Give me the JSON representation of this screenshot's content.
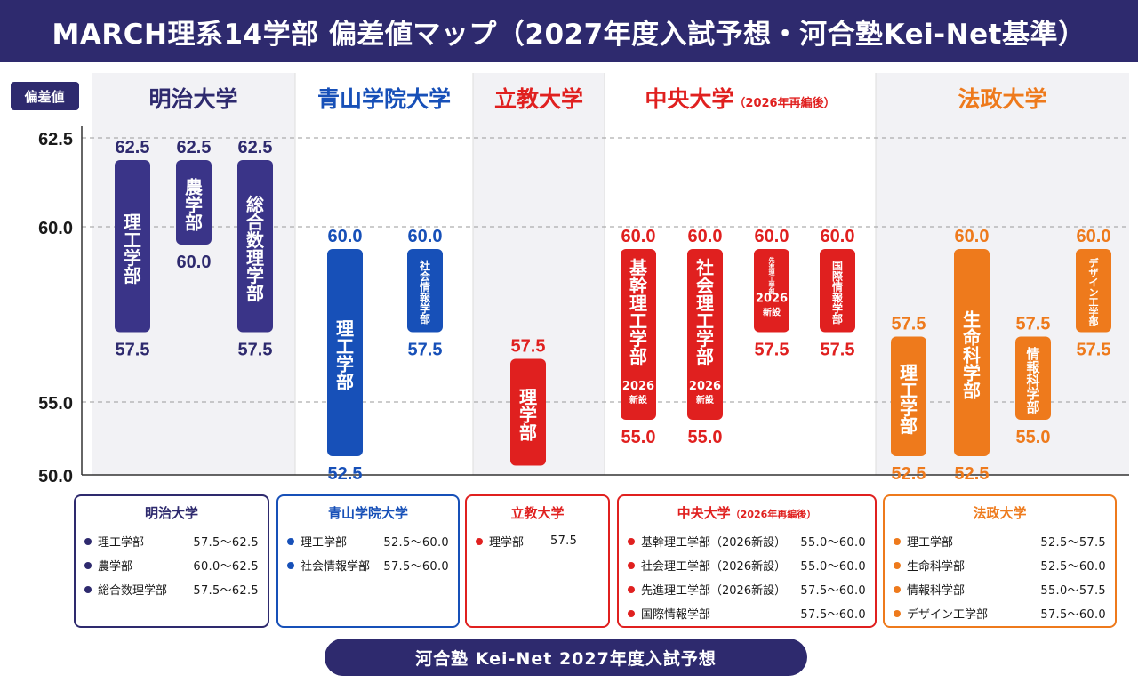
{
  "title": "MARCH理系14学部 偏差値マップ（2027年度入試予想・河合塾Kei-Net基準）",
  "chart_data": {
    "type": "bar",
    "subtype": "floating-range",
    "y_label": "偏差値",
    "y_ticks": [
      "62.5",
      "60.0",
      "55.0",
      "50.0"
    ],
    "y_tick_values": [
      62.5,
      60.0,
      55.0,
      50.0
    ],
    "ylim": [
      50.0,
      62.5
    ],
    "grid": true,
    "groups": [
      {
        "name": "明治大学",
        "note": "",
        "color": "#3a3488",
        "depts": [
          {
            "label": "理工学部",
            "low": 57.5,
            "high": 62.5,
            "low_label": "57.5",
            "high_label": "62.5"
          },
          {
            "label": "農学部",
            "low": 60.0,
            "high": 62.5,
            "low_label": "60.0",
            "high_label": "62.5"
          },
          {
            "label": "総合数理学部",
            "low": 57.5,
            "high": 62.5,
            "low_label": "57.5",
            "high_label": "62.5"
          }
        ]
      },
      {
        "name": "青山学院大学",
        "note": "",
        "color": "#1750b8",
        "depts": [
          {
            "label": "理工学部",
            "low": 52.5,
            "high": 60.0,
            "low_label": "52.5",
            "high_label": "60.0"
          },
          {
            "label": "社会情報学部",
            "low": 57.5,
            "high": 60.0,
            "low_label": "57.5",
            "high_label": "60.0"
          }
        ]
      },
      {
        "name": "立教大学",
        "note": "",
        "color": "#e0201f",
        "depts": [
          {
            "label": "理学部",
            "low": 57.5,
            "high": 57.5,
            "low_label": "",
            "high_label": "57.5"
          }
        ]
      },
      {
        "name": "中央大学",
        "note": "（2026年再編後）",
        "color": "#e0201f",
        "depts": [
          {
            "label": "基幹理工学部",
            "sub": "2026\n新設",
            "low": 55.0,
            "high": 60.0,
            "low_label": "55.0",
            "high_label": "60.0"
          },
          {
            "label": "社会理工学部",
            "sub": "2026\n新設",
            "low": 55.0,
            "high": 60.0,
            "low_label": "55.0",
            "high_label": "60.0"
          },
          {
            "label": "先進理工学部",
            "sub": "2026\n新設",
            "low": 57.5,
            "high": 60.0,
            "low_label": "57.5",
            "high_label": "60.0"
          },
          {
            "label": "国際情報学部",
            "low": 57.5,
            "high": 60.0,
            "low_label": "57.5",
            "high_label": "60.0"
          }
        ]
      },
      {
        "name": "法政大学",
        "note": "",
        "color": "#ee7a1c",
        "depts": [
          {
            "label": "理工学部",
            "low": 52.5,
            "high": 57.5,
            "low_label": "52.5",
            "high_label": "57.5"
          },
          {
            "label": "生命科学部",
            "low": 52.5,
            "high": 60.0,
            "low_label": "52.5",
            "high_label": "60.0"
          },
          {
            "label": "情報科学部",
            "low": 55.0,
            "high": 57.5,
            "low_label": "55.0",
            "high_label": "57.5"
          },
          {
            "label": "デザイン工学部",
            "low": 57.5,
            "high": 60.0,
            "low_label": "57.5",
            "high_label": "60.0"
          }
        ]
      }
    ]
  },
  "summary_cards": [
    {
      "title": "明治大学",
      "note": "",
      "rows": [
        {
          "dept": "理工学部",
          "range": "57.5〜62.5"
        },
        {
          "dept": "農学部",
          "range": "60.0〜62.5"
        },
        {
          "dept": "総合数理学部",
          "range": "57.5〜62.5"
        }
      ]
    },
    {
      "title": "青山学院大学",
      "note": "",
      "rows": [
        {
          "dept": "理工学部",
          "range": "52.5〜60.0"
        },
        {
          "dept": "社会情報学部",
          "range": "57.5〜60.0"
        }
      ]
    },
    {
      "title": "立教大学",
      "note": "",
      "rows": [
        {
          "dept": "理学部",
          "range": "57.5"
        }
      ]
    },
    {
      "title": "中央大学",
      "note": "（2026年再編後）",
      "rows": [
        {
          "dept": "基幹理工学部（2026新設）",
          "range": "55.0〜60.0"
        },
        {
          "dept": "社会理工学部（2026新設）",
          "range": "55.0〜60.0"
        },
        {
          "dept": "先進理工学部（2026新設）",
          "range": "57.5〜60.0"
        },
        {
          "dept": "国際情報学部",
          "range": "57.5〜60.0"
        }
      ]
    },
    {
      "title": "法政大学",
      "note": "",
      "rows": [
        {
          "dept": "理工学部",
          "range": "52.5〜57.5"
        },
        {
          "dept": "生命科学部",
          "range": "52.5〜60.0"
        },
        {
          "dept": "情報科学部",
          "range": "55.0〜57.5"
        },
        {
          "dept": "デザイン工学部",
          "range": "57.5〜60.0"
        }
      ]
    }
  ],
  "footer": "河合塾 Kei-Net 2027年度入試予想"
}
